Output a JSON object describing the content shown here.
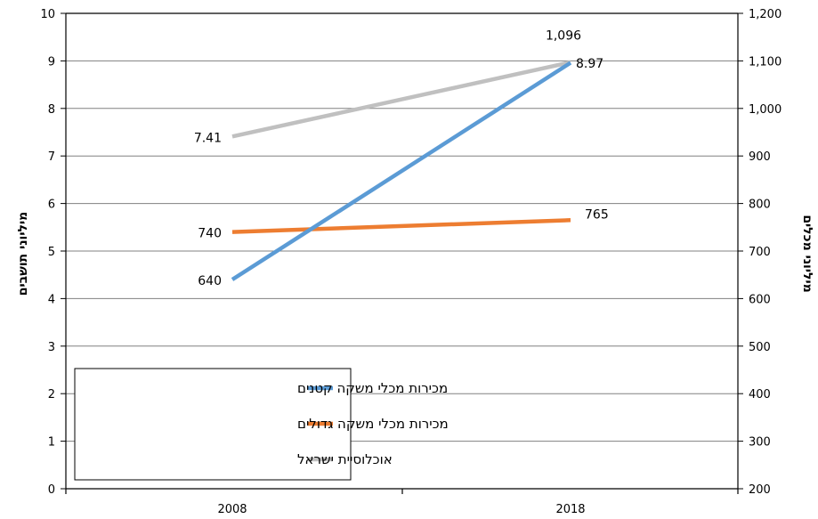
{
  "chart_data": {
    "type": "line",
    "x": [
      "2008",
      "2018"
    ],
    "series": [
      {
        "name": "מכירות מכלי משקה קטנים",
        "axis": "right",
        "values": [
          640,
          1096
        ],
        "color": "#5B9BD5",
        "labels": [
          "640",
          "1,096"
        ]
      },
      {
        "name": "מכירות מכלי משקה גדולים",
        "axis": "right",
        "values": [
          740,
          765
        ],
        "color": "#ED7D31",
        "labels": [
          "740",
          "765"
        ]
      },
      {
        "name": "אוכלוסיית ישראל",
        "axis": "left",
        "values": [
          7.41,
          8.97
        ],
        "color": "#C0C0C0",
        "labels": [
          "7.41",
          "8.97"
        ]
      }
    ],
    "y_left": {
      "label": "מיליוני תושבים",
      "ylim": [
        0,
        10
      ],
      "ticks": [
        "0",
        "1",
        "2",
        "3",
        "4",
        "5",
        "6",
        "7",
        "8",
        "9",
        "10"
      ]
    },
    "y_right": {
      "label": "מיליוני מכלים",
      "ylim": [
        200,
        1200
      ],
      "ticks": [
        "200",
        "300",
        "400",
        "500",
        "600",
        "700",
        "800",
        "900",
        "1,000",
        "1,100",
        "1,200"
      ]
    },
    "grid": true,
    "legend": "bottom-left"
  }
}
